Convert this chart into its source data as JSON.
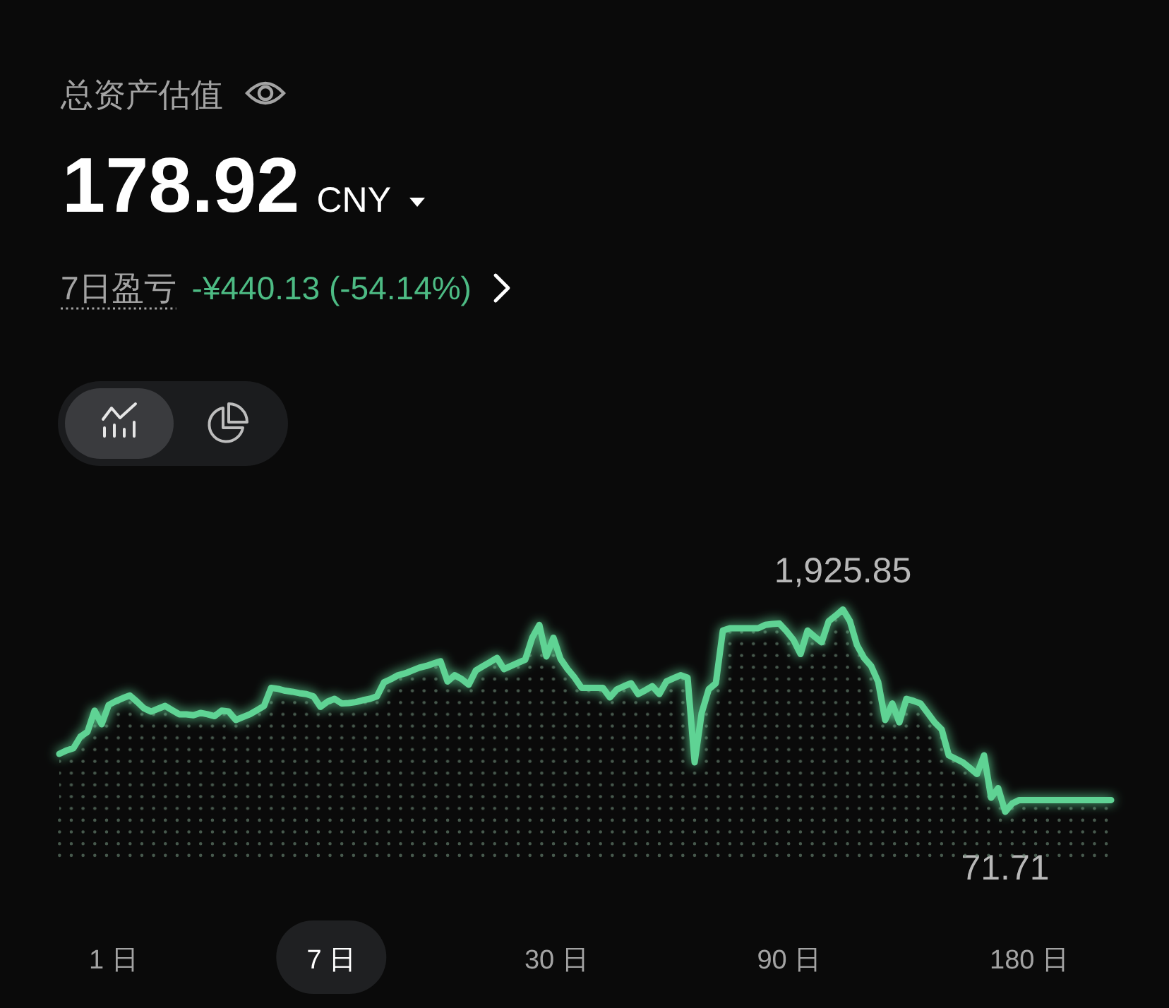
{
  "chart_data": {
    "type": "area",
    "title": "总资产估值",
    "color": "#5fd394",
    "tick_labels": false,
    "categories": [
      null,
      null,
      null,
      null,
      null,
      null,
      null,
      null,
      null,
      null,
      null,
      null,
      null,
      null,
      null,
      null,
      null,
      null,
      null,
      null,
      null,
      null,
      null,
      null,
      null,
      null,
      null,
      null,
      null,
      null,
      null,
      null,
      null,
      null,
      null,
      null,
      null,
      null,
      null,
      null,
      null,
      null,
      null,
      null,
      null,
      null,
      null,
      null,
      null,
      null,
      null,
      null,
      null,
      null,
      null,
      null,
      null,
      null,
      null,
      null,
      null,
      null,
      null,
      null,
      null,
      null,
      null,
      null,
      null,
      null,
      null,
      null,
      null,
      null,
      null,
      null,
      null,
      null,
      null,
      null,
      null,
      null,
      null,
      null,
      null,
      null,
      null,
      null,
      null,
      null,
      null,
      null,
      null,
      null,
      null,
      null,
      null,
      null,
      null,
      null,
      null,
      null,
      null,
      null,
      null,
      null,
      null,
      null,
      null,
      null,
      null,
      null,
      null,
      null,
      null,
      null,
      null,
      null,
      null,
      null,
      null,
      null,
      null,
      null,
      null,
      null,
      null,
      null,
      null,
      null,
      null,
      null,
      null,
      null,
      null,
      null,
      null,
      null,
      null,
      null,
      null,
      null,
      null,
      null,
      null,
      null,
      null,
      null,
      null,
      null
    ],
    "values": [
      602,
      633,
      654,
      761,
      805,
      999,
      874,
      1051,
      1085,
      1113,
      1137,
      1081,
      1020,
      990,
      1016,
      1042,
      1003,
      965,
      965,
      956,
      978,
      965,
      948,
      999,
      990,
      913,
      939,
      965,
      1003,
      1042,
      1207,
      1198,
      1181,
      1172,
      1159,
      1150,
      1129,
      1033,
      1081,
      1107,
      1064,
      1068,
      1077,
      1094,
      1107,
      1129,
      1258,
      1288,
      1323,
      1340,
      1366,
      1392,
      1408,
      1430,
      1452,
      1266,
      1323,
      1288,
      1236,
      1366,
      1405,
      1443,
      1482,
      1379,
      1408,
      1437,
      1465,
      1667,
      1784,
      1495,
      1667,
      1473,
      1379,
      1301,
      1207,
      1207,
      1207,
      1207,
      1120,
      1194,
      1223,
      1249,
      1150,
      1185,
      1223,
      1150,
      1266,
      1295,
      1323,
      1301,
      525,
      978,
      1194,
      1249,
      1732,
      1754,
      1754,
      1754,
      1754,
      1754,
      1784,
      1793,
      1797,
      1728,
      1647,
      1517,
      1732,
      1676,
      1625,
      1819,
      1870,
      1925.85,
      1819,
      1599,
      1482,
      1408,
      1262,
      913,
      1064,
      891,
      1107,
      1088,
      1064,
      978,
      891,
      826,
      589,
      557,
      525,
      473,
      417,
      589,
      201,
      288,
      71.71,
      149,
      178.92,
      178.92,
      178.92,
      178.92,
      178.92,
      178.92,
      178.92,
      178.92,
      178.92,
      178.92,
      178.92,
      178.92,
      178.92,
      178.92
    ],
    "value_labels": [
      null,
      null,
      null,
      null,
      null,
      null,
      null,
      null,
      null,
      null,
      null,
      null,
      null,
      null,
      null,
      null,
      null,
      null,
      null,
      null,
      null,
      null,
      null,
      null,
      null,
      null,
      null,
      null,
      null,
      null,
      null,
      null,
      null,
      null,
      null,
      null,
      null,
      null,
      null,
      null,
      null,
      null,
      null,
      null,
      null,
      null,
      null,
      null,
      null,
      null,
      null,
      null,
      null,
      null,
      null,
      null,
      null,
      null,
      null,
      null,
      null,
      null,
      null,
      null,
      null,
      null,
      null,
      null,
      null,
      null,
      null,
      null,
      null,
      null,
      null,
      null,
      null,
      null,
      null,
      null,
      null,
      null,
      null,
      null,
      null,
      null,
      null,
      null,
      null,
      null,
      null,
      null,
      null,
      null,
      null,
      null,
      null,
      null,
      null,
      null,
      null,
      null,
      null,
      null,
      null,
      null,
      null,
      null,
      null,
      null,
      null,
      "1,925.85",
      null,
      null,
      null,
      null,
      null,
      null,
      null,
      null,
      null,
      null,
      null,
      null,
      null,
      null,
      null,
      null,
      null,
      null,
      null,
      null,
      null,
      null,
      "71.71",
      null,
      null,
      null,
      null,
      null,
      null,
      null,
      null,
      null,
      null,
      null,
      null,
      null,
      null,
      null
    ],
    "annotations": [
      "178.92",
      "CNY",
      "7日盈亏",
      "-¥440.13 (-54.14%)",
      "1 日",
      "7 日",
      "30 日",
      "90 日",
      "180 日"
    ]
  }
}
